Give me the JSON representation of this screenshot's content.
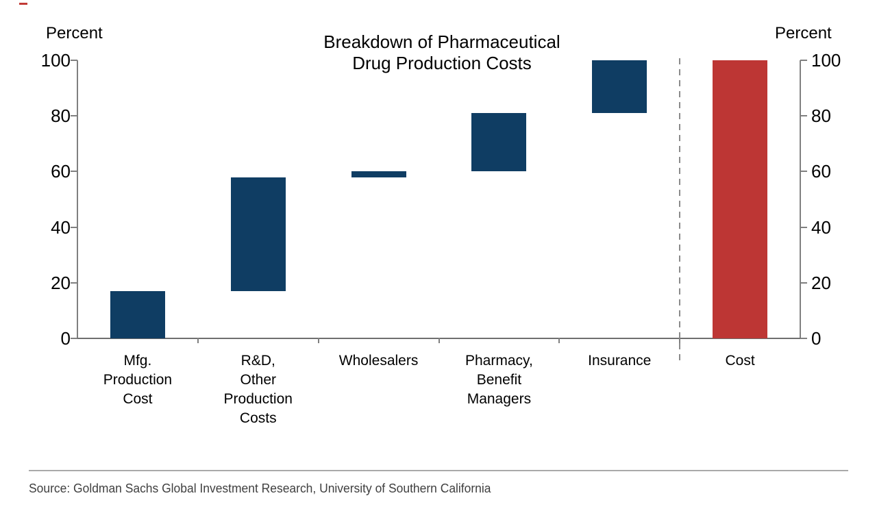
{
  "chart_data": {
    "type": "bar",
    "subtype": "waterfall",
    "title": "Breakdown of Pharmaceutical Drug Production Costs",
    "title_lines": [
      "Breakdown of Pharmaceutical",
      "Drug Production Costs"
    ],
    "ylabel_left": "Percent",
    "ylabel_right": "Percent",
    "ylim": [
      0,
      100
    ],
    "y_ticks": [
      0,
      20,
      40,
      60,
      80,
      100
    ],
    "grid": false,
    "bars": [
      {
        "label": "Mfg. Production Cost",
        "label_lines": [
          "Mfg.",
          "Production",
          "Cost"
        ],
        "start": 0,
        "end": 17,
        "value": 17,
        "color_key": "navy"
      },
      {
        "label": "R&D, Other Production Costs",
        "label_lines": [
          "R&D,",
          "Other",
          "Production",
          "Costs"
        ],
        "start": 17,
        "end": 58,
        "value": 41,
        "color_key": "navy"
      },
      {
        "label": "Wholesalers",
        "label_lines": [
          "Wholesalers"
        ],
        "start": 58,
        "end": 60,
        "value": 2,
        "color_key": "navy"
      },
      {
        "label": "Pharmacy, Benefit Managers",
        "label_lines": [
          "Pharmacy,",
          "Benefit",
          "Managers"
        ],
        "start": 60,
        "end": 81,
        "value": 21,
        "color_key": "navy"
      },
      {
        "label": "Insurance",
        "label_lines": [
          "Insurance"
        ],
        "start": 81,
        "end": 100,
        "value": 19,
        "color_key": "navy"
      },
      {
        "label": "Cost",
        "label_lines": [
          "Cost"
        ],
        "start": 0,
        "end": 100,
        "value": 100,
        "color_key": "red"
      }
    ],
    "divider_before_label": "Cost",
    "colors": {
      "navy": "#0f3d63",
      "red": "#bd3634"
    }
  },
  "footer": {
    "source_text": "Source: Goldman Sachs Global Investment Research, University of Southern California"
  },
  "decorations": {
    "corner_mark_color": "#c13b36"
  }
}
